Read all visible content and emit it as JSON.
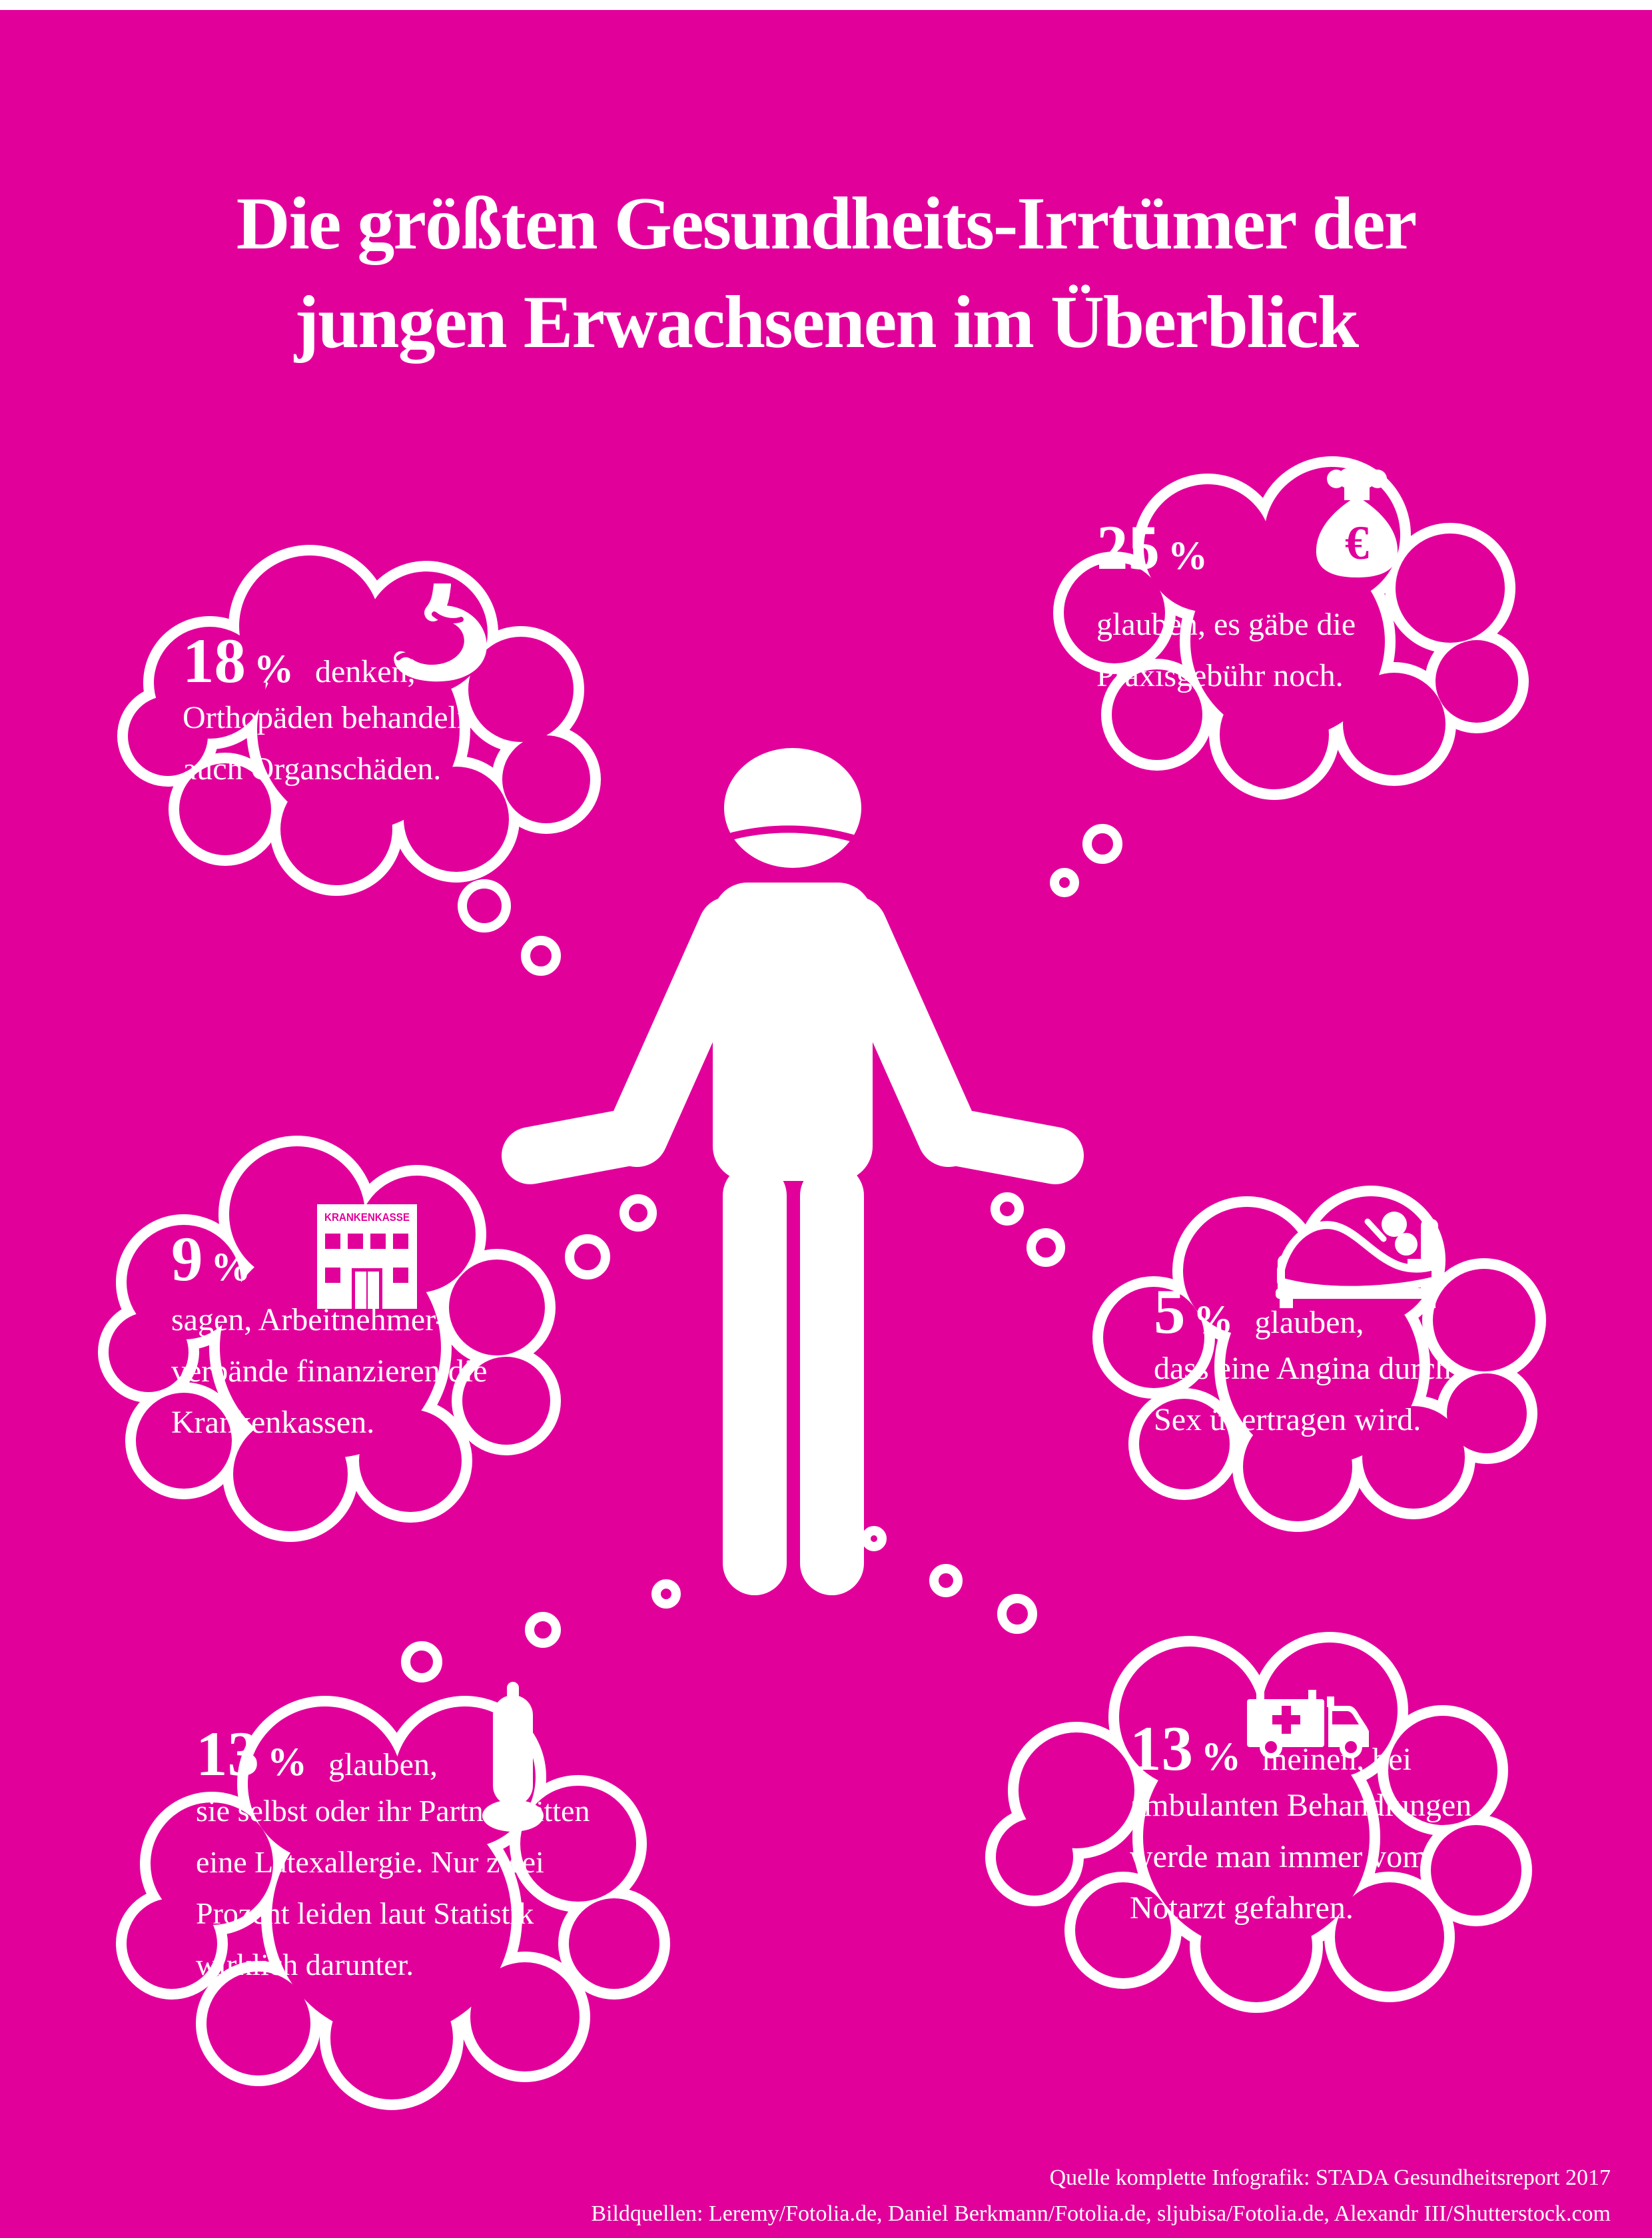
{
  "page": {
    "background_color": "#E2009B",
    "top_bar_color": "#FFFFFF",
    "title_line1": "Die größten Gesundheits-Irrtümer der",
    "title_line2": "jungen Erwachsenen im Überblick",
    "source_line1": "Quelle komplette Infografik: STADA Gesundheitsreport 2017",
    "source_line2": "Bildquellen: Leremy/Fotolia.de, Daniel Berkmann/Fotolia.de, sljubisa/Fotolia.de, Alexandr III/Shutterstock.com"
  },
  "figure": {
    "description": "weißes Piktogramm: ratlos schulterzuckender Mensch"
  },
  "bubbles": {
    "orthopaeden": {
      "value": "18",
      "unit": "%",
      "lead": "denken,",
      "lines": [
        "Orthopäden behandeln",
        "auch Organschäden."
      ],
      "icon": "stomach-icon"
    },
    "praxisgebuehr": {
      "value": "25",
      "unit": "%",
      "lines": [
        "glauben, es gäbe die",
        "Praxisgebühr noch."
      ],
      "icon": "money-bag-euro-icon",
      "currency_symbol": "€"
    },
    "krankenkassen": {
      "value": "9",
      "unit": "%",
      "lines": [
        "sagen, Arbeitnehmer-",
        "verbände finanzieren die",
        "Krankenkassen."
      ],
      "icon": "health-insurance-building-icon",
      "building_sign": "KRANKENKASSE"
    },
    "angina": {
      "value": "5",
      "unit": "%",
      "lead": "glauben,",
      "lines": [
        "dass eine Angina durch",
        "Sex übertragen wird."
      ],
      "icon": "couple-in-bed-icon"
    },
    "latexallergie": {
      "value": "13",
      "unit": "%",
      "lead": "glauben,",
      "lines": [
        "sie selbst oder ihr Partner hätten",
        "eine Latexallergie. Nur zwei",
        "Prozent leiden laut Statistik",
        "wirklich darunter."
      ],
      "icon": "condom-icon"
    },
    "notarzt": {
      "value": "13",
      "unit": "%",
      "lead": "meinen, bei",
      "lines": [
        "ambulanten Behandlungen",
        "werde man immer vom",
        "Notarzt gefahren."
      ],
      "icon": "ambulance-icon"
    }
  }
}
